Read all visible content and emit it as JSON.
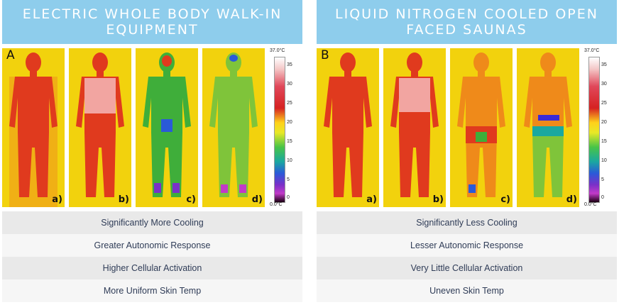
{
  "left": {
    "title": "ELECTRIC WHOLE BODY WALK-IN EQUIPMENT",
    "figure_letter": "A",
    "scale": {
      "max": "37.0°C",
      "min": "0.0°C",
      "ticks": [
        "35",
        "30",
        "25",
        "20",
        "15",
        "10",
        "5",
        "0"
      ]
    },
    "frames": [
      {
        "label": "a)"
      },
      {
        "label": "b)"
      },
      {
        "label": "c)"
      },
      {
        "label": "d)"
      }
    ],
    "rows": [
      "Significantly More Cooling",
      "Greater Autonomic Response",
      "Higher Cellular Activation",
      "More Uniform Skin Temp"
    ]
  },
  "right": {
    "title": "LIQUID NITROGEN COOLED OPEN FACED SAUNAS",
    "figure_letter": "B",
    "scale": {
      "max": "37.0°C",
      "min": "0.0°C",
      "ticks": [
        "35",
        "30",
        "25",
        "20",
        "15",
        "10",
        "5",
        "0"
      ]
    },
    "frames": [
      {
        "label": "a)"
      },
      {
        "label": "b)"
      },
      {
        "label": "c)"
      },
      {
        "label": "d)"
      }
    ],
    "rows": [
      "Significantly Less Cooling",
      "Lesser Autonomic Response",
      "Very Little Cellular Activation",
      "Uneven Skin Temp"
    ]
  },
  "colors": {
    "header_bg": "#8ecdec",
    "row_text": "#2f3c57",
    "row_odd": "#e9e9e9",
    "row_even": "#f6f6f6"
  }
}
